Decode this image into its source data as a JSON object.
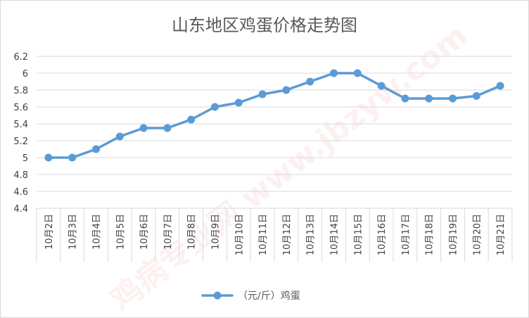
{
  "chart_data": {
    "type": "line",
    "title": "山东地区鸡蛋价格走势图",
    "categories": [
      "10月2日",
      "10月3日",
      "10月4日",
      "10月5日",
      "10月6日",
      "10月7日",
      "10月8日",
      "10月9日",
      "10月10日",
      "10月11日",
      "10月12日",
      "10月13日",
      "10月14日",
      "10月15日",
      "10月16日",
      "10月17日",
      "10月18日",
      "10月19日",
      "10月20日",
      "10月21日"
    ],
    "series": [
      {
        "name": "（元/斤）鸡蛋",
        "values": [
          5.0,
          5.0,
          5.1,
          5.25,
          5.35,
          5.35,
          5.45,
          5.6,
          5.65,
          5.75,
          5.8,
          5.9,
          6.0,
          6.0,
          5.85,
          5.7,
          5.7,
          5.7,
          5.73,
          5.85
        ],
        "color": "#5b9bd5"
      }
    ],
    "ylim": [
      4.4,
      6.2
    ],
    "yticks": [
      "4.4",
      "4.6",
      "4.8",
      "5",
      "5.2",
      "5.4",
      "5.6",
      "5.8",
      "6",
      "6.2"
    ],
    "grid": true,
    "legend": "bottom"
  },
  "watermark": {
    "text": "鸡病专业网 www.jbzyw.com"
  }
}
